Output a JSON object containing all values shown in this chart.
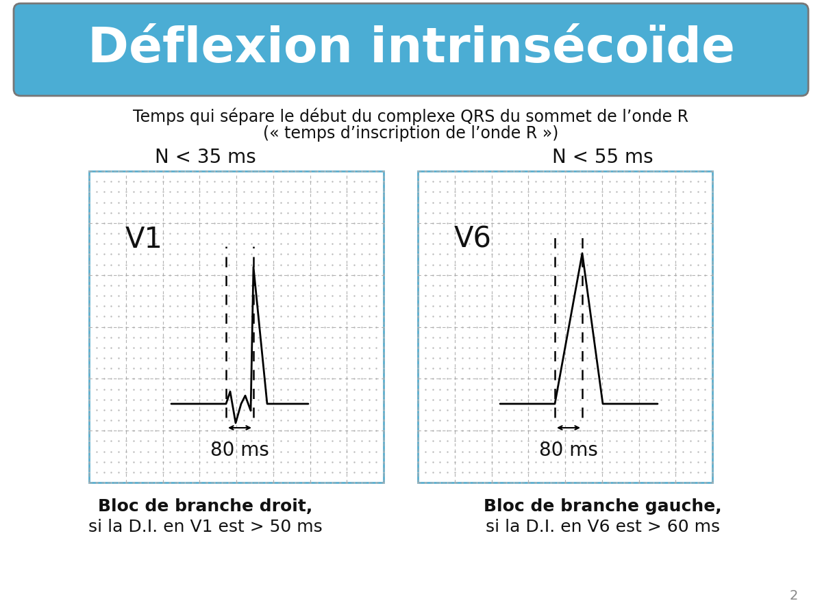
{
  "title": "Déflexion intrinsécoïde",
  "title_bg_color": "#4BADD4",
  "title_text_color": "#FFFFFF",
  "subtitle_line1": "Temps qui sépare le début du complexe QRS du sommet de l’onde R",
  "subtitle_line2": "(« temps d’inscription de l’onde R »)",
  "left_label": "N < 35 ms",
  "right_label": "N < 55 ms",
  "left_lead": "V1",
  "right_lead": "V6",
  "ms_label": "80 ms",
  "bottom_left_bold": "Bloc de branche droit",
  "bottom_left_comma": ",",
  "bottom_left_normal": "si la D.I. en V1 est > 50 ms",
  "bottom_right_bold": "Bloc de branche gauche",
  "bottom_right_comma": ",",
  "bottom_right_normal": "si la D.I. en V6 est > 60 ms",
  "grid_dot_color": "#BBBBBB",
  "grid_dash_color": "#AAAAAA",
  "box_border_color": "#5AAFCF",
  "box_bg_color": "#FFFFFF",
  "page_number": "2",
  "background_color": "#FFFFFF"
}
